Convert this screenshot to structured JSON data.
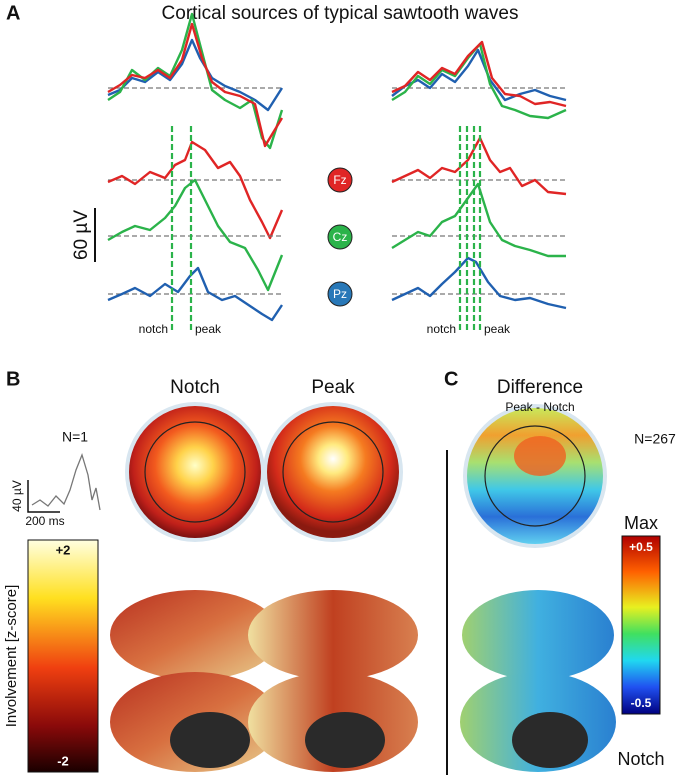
{
  "panel_a": {
    "label": "A",
    "title": "Cortical sources of typical sawtooth waves",
    "scale_bar": "60 µV",
    "electrodes": [
      "Fz",
      "Cz",
      "Pz"
    ],
    "left_markers": [
      "notch",
      "peak"
    ],
    "right_markers": [
      "notch",
      "peak"
    ]
  },
  "panel_b": {
    "label": "B",
    "columns": [
      "Notch",
      "Peak"
    ],
    "n": "N=1",
    "inset_amplitude": "40 µV",
    "inset_time": "200 ms",
    "colorbar": {
      "max": "+2",
      "min": "-2",
      "label": "Involvement [z-score]"
    }
  },
  "panel_c": {
    "label": "C",
    "title": "Difference",
    "subtitle": "Peak - Notch",
    "n": "N=267",
    "colorbar": {
      "top": "Max",
      "max": "+0.5",
      "min": "-0.5",
      "bottom": "Notch"
    }
  }
}
